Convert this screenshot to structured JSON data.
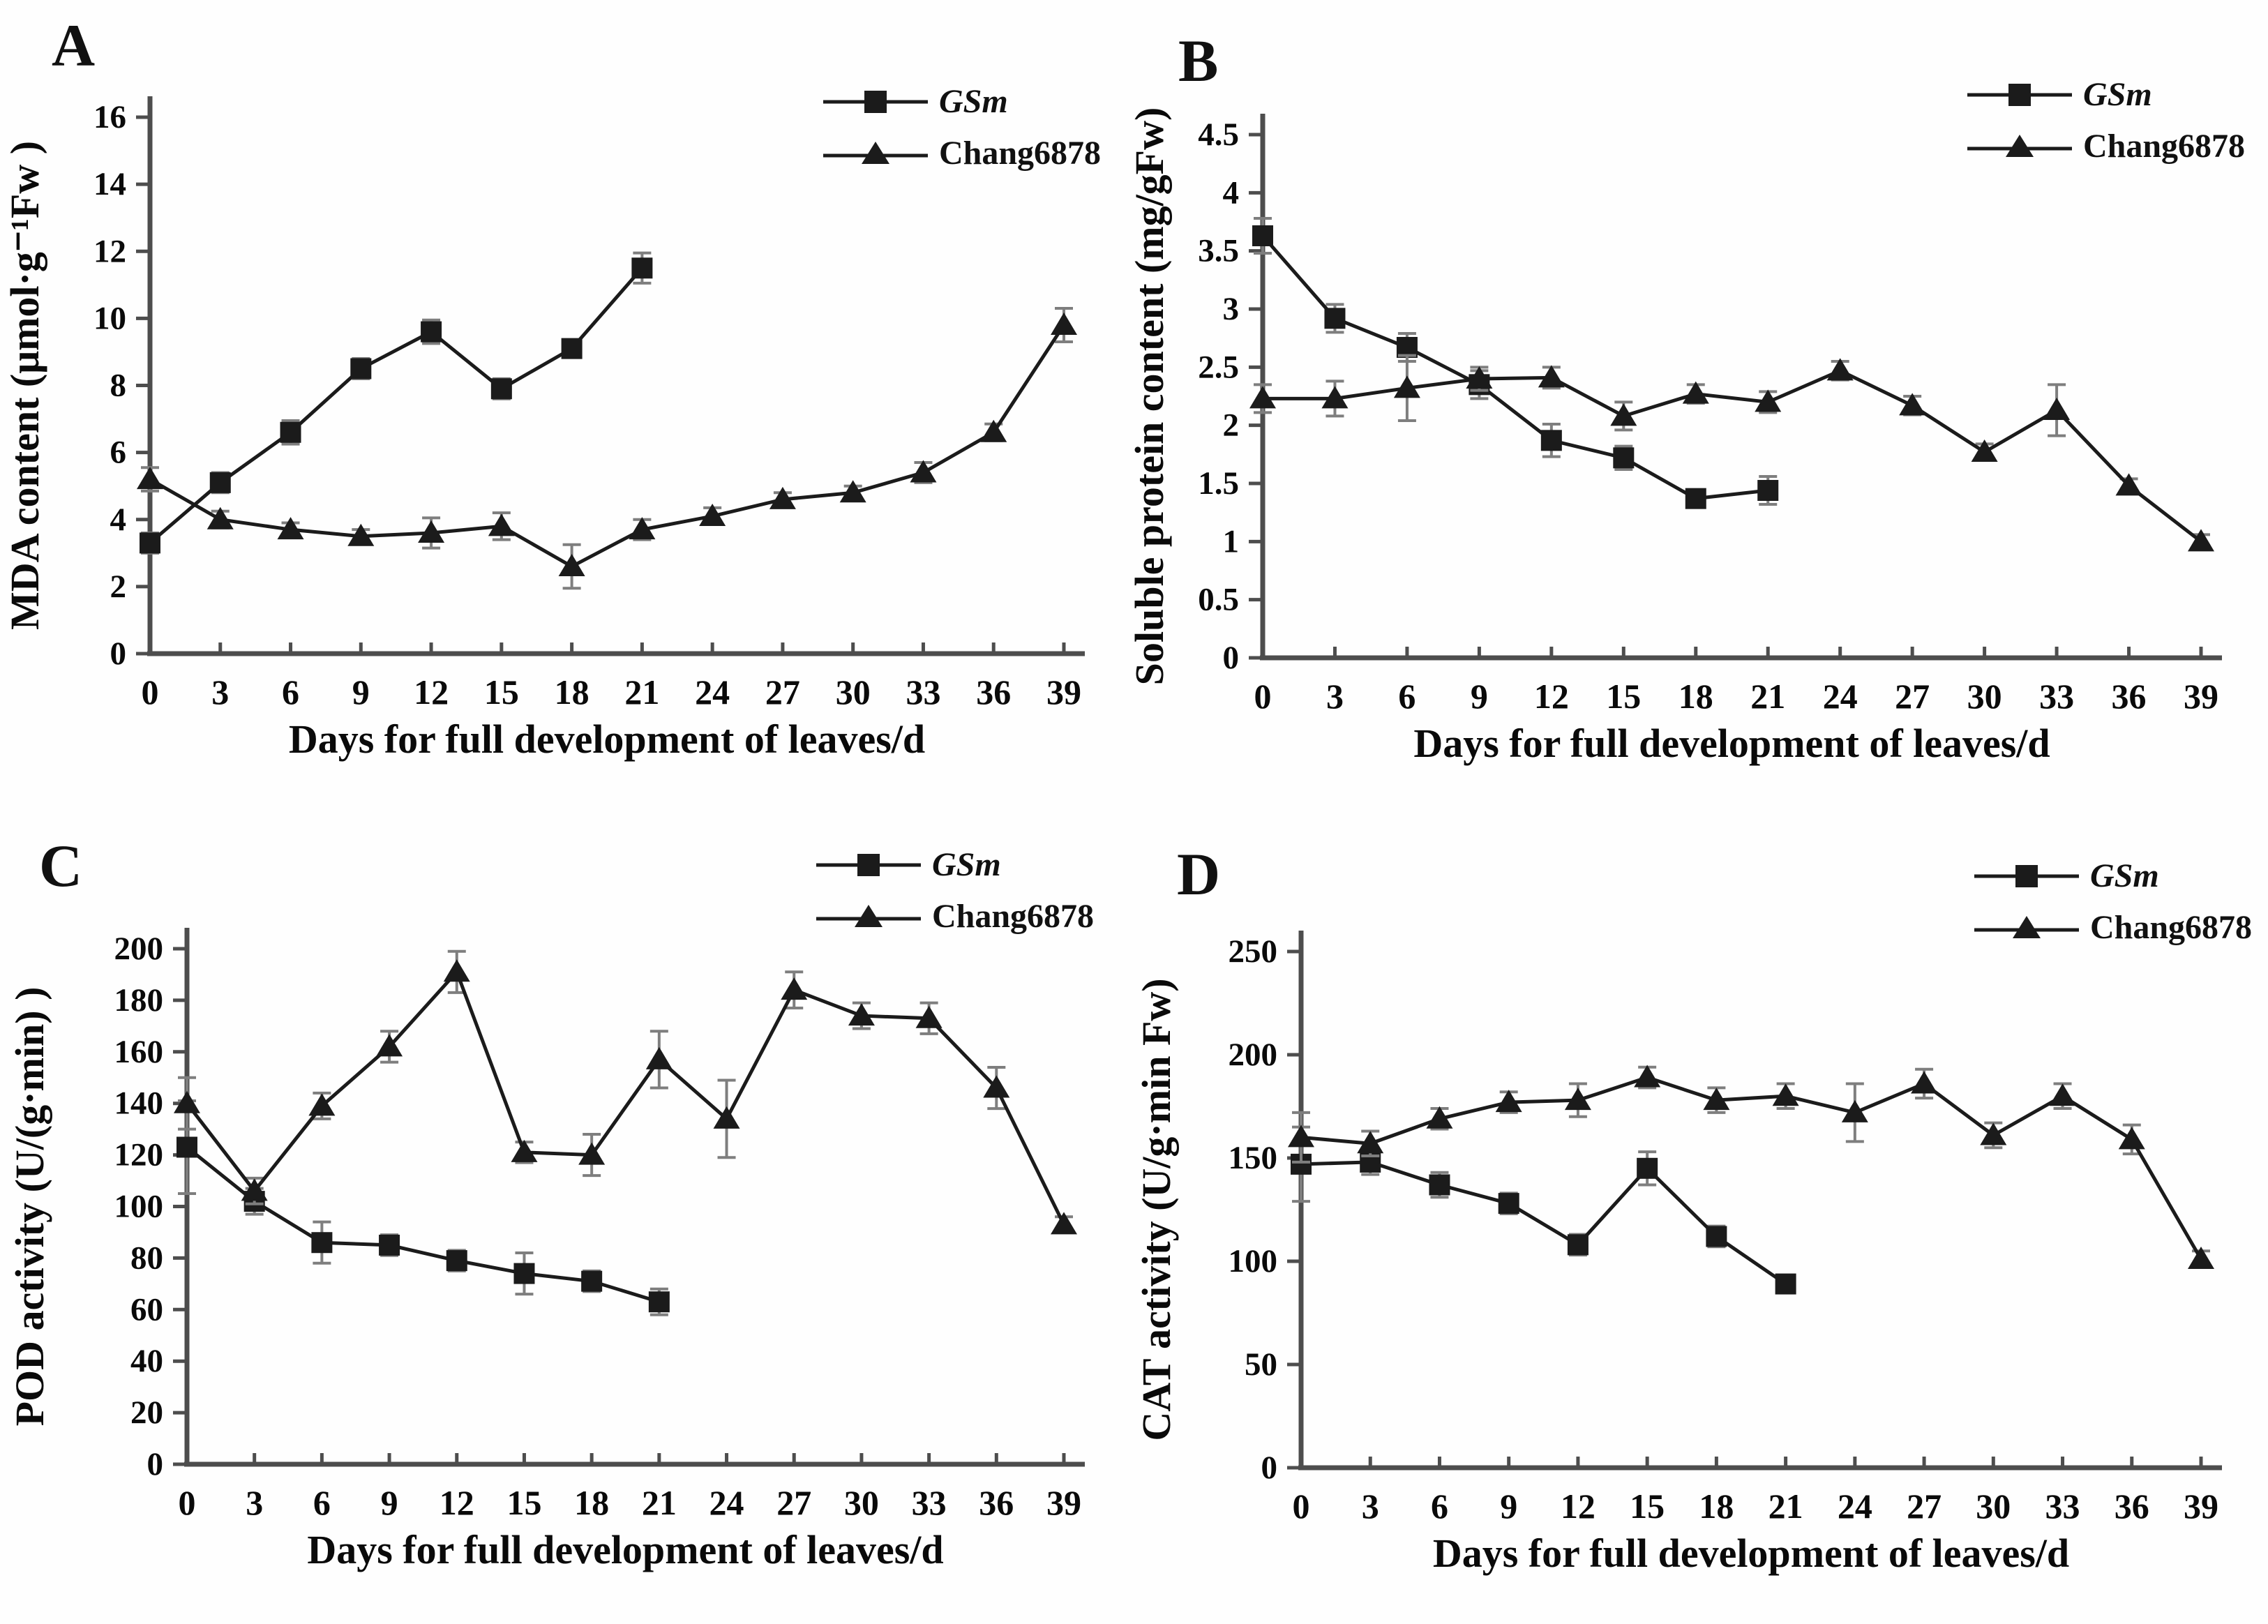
{
  "figure_title": "",
  "legend": {
    "gsm_label": "GSm",
    "chang_label": "Chang6878"
  },
  "chart_data": [
    {
      "panel_label": "A",
      "type": "line",
      "xlabel": "Days for full development of leaves/d",
      "ylabel": "MDA content (μmol·g⁻¹Fw )",
      "xlim": [
        0,
        39
      ],
      "x_ticks": [
        0,
        3,
        6,
        9,
        12,
        15,
        18,
        21,
        24,
        27,
        30,
        33,
        36,
        39
      ],
      "ylim": [
        0,
        16
      ],
      "ytick_step": 2,
      "grid": false,
      "legend_position": "top-right",
      "series": [
        {
          "name": "GSm",
          "marker": "square",
          "italic": true,
          "x": [
            0,
            3,
            6,
            9,
            12,
            15,
            18,
            21
          ],
          "y": [
            3.3,
            5.1,
            6.6,
            8.5,
            9.6,
            7.9,
            9.1,
            11.5
          ],
          "err": [
            0.3,
            0.3,
            0.35,
            0.3,
            0.35,
            0.3,
            0.25,
            0.45
          ]
        },
        {
          "name": "Chang6878",
          "marker": "triangle",
          "italic": false,
          "x": [
            0,
            3,
            6,
            9,
            12,
            15,
            18,
            21,
            24,
            27,
            30,
            33,
            36,
            39
          ],
          "y": [
            5.2,
            4.0,
            3.7,
            3.5,
            3.6,
            3.8,
            2.6,
            3.7,
            4.1,
            4.6,
            4.8,
            5.4,
            6.6,
            9.8
          ],
          "err": [
            0.35,
            0.25,
            0.2,
            0.2,
            0.45,
            0.4,
            0.65,
            0.3,
            0.25,
            0.2,
            0.2,
            0.3,
            0.25,
            0.5
          ]
        }
      ]
    },
    {
      "panel_label": "B",
      "type": "line",
      "xlabel": "Days for full development of leaves/d",
      "ylabel": "Soluble protein content (mg/gFw)",
      "xlim": [
        0,
        39
      ],
      "x_ticks": [
        0,
        3,
        6,
        9,
        12,
        15,
        18,
        21,
        24,
        27,
        30,
        33,
        36,
        39
      ],
      "ylim": [
        0,
        4.5
      ],
      "ytick_step": 0.5,
      "grid": false,
      "legend_position": "top-right",
      "series": [
        {
          "name": "GSm",
          "marker": "square",
          "italic": true,
          "x": [
            0,
            3,
            6,
            9,
            12,
            15,
            18,
            21
          ],
          "y": [
            3.63,
            2.92,
            2.67,
            2.35,
            1.87,
            1.72,
            1.37,
            1.44
          ],
          "err": [
            0.15,
            0.12,
            0.12,
            0.12,
            0.14,
            0.1,
            0.07,
            0.12
          ]
        },
        {
          "name": "Chang6878",
          "marker": "triangle",
          "italic": false,
          "x": [
            0,
            3,
            6,
            9,
            12,
            15,
            18,
            21,
            24,
            27,
            30,
            33,
            36,
            39
          ],
          "y": [
            2.23,
            2.23,
            2.32,
            2.4,
            2.41,
            2.08,
            2.27,
            2.2,
            2.47,
            2.17,
            1.77,
            2.13,
            1.48,
            1.0
          ],
          "err": [
            0.12,
            0.15,
            0.28,
            0.1,
            0.09,
            0.12,
            0.08,
            0.09,
            0.08,
            0.08,
            0.07,
            0.22,
            0.06,
            0.06
          ]
        }
      ]
    },
    {
      "panel_label": "C",
      "type": "line",
      "xlabel": "Days for full development of leaves/d",
      "ylabel": "POD activity (U/(g·min) )",
      "xlim": [
        0,
        39
      ],
      "x_ticks": [
        0,
        3,
        6,
        9,
        12,
        15,
        18,
        21,
        24,
        27,
        30,
        33,
        36,
        39
      ],
      "ylim": [
        0,
        200
      ],
      "ytick_step": 20,
      "grid": false,
      "legend_position": "top-right",
      "series": [
        {
          "name": "GSm",
          "marker": "square",
          "italic": true,
          "x": [
            0,
            3,
            6,
            9,
            12,
            15,
            18,
            21
          ],
          "y": [
            123,
            102,
            86,
            85,
            79,
            74,
            71,
            63
          ],
          "err": [
            18,
            5,
            8,
            4,
            4,
            8,
            4,
            5
          ]
        },
        {
          "name": "Chang6878",
          "marker": "triangle",
          "italic": false,
          "x": [
            0,
            3,
            6,
            9,
            12,
            15,
            18,
            21,
            24,
            27,
            30,
            33,
            36,
            39
          ],
          "y": [
            140,
            106,
            139,
            162,
            191,
            121,
            120,
            157,
            134,
            184,
            174,
            173,
            146,
            93
          ],
          "err": [
            10,
            5,
            5,
            6,
            8,
            4,
            8,
            11,
            15,
            7,
            5,
            6,
            8,
            3
          ]
        }
      ]
    },
    {
      "panel_label": "D",
      "type": "line",
      "xlabel": "Days for full development of leaves/d",
      "ylabel": "CAT activity (U/g·min Fw)",
      "xlim": [
        0,
        39
      ],
      "x_ticks": [
        0,
        3,
        6,
        9,
        12,
        15,
        18,
        21,
        24,
        27,
        30,
        33,
        36,
        39
      ],
      "ylim": [
        0,
        250
      ],
      "ytick_step": 50,
      "grid": false,
      "legend_position": "top-right",
      "series": [
        {
          "name": "GSm",
          "marker": "square",
          "italic": true,
          "x": [
            0,
            3,
            6,
            9,
            12,
            15,
            18,
            21
          ],
          "y": [
            147,
            148,
            137,
            128,
            108,
            145,
            112,
            89
          ],
          "err": [
            18,
            6,
            6,
            5,
            5,
            8,
            5,
            4
          ]
        },
        {
          "name": "Chang6878",
          "marker": "triangle",
          "italic": false,
          "x": [
            0,
            3,
            6,
            9,
            12,
            15,
            18,
            21,
            24,
            27,
            30,
            33,
            36,
            39
          ],
          "y": [
            160,
            157,
            169,
            177,
            178,
            189,
            178,
            180,
            172,
            186,
            161,
            180,
            159,
            101
          ],
          "err": [
            12,
            6,
            5,
            5,
            8,
            5,
            6,
            6,
            14,
            7,
            6,
            6,
            7,
            4
          ]
        }
      ]
    }
  ],
  "colors": {
    "series": "#1b1b1b",
    "axis": "#4d4d4d",
    "error_bar": "#7e7e7e",
    "text": "#0a0a0a",
    "background": "#fefefe"
  }
}
